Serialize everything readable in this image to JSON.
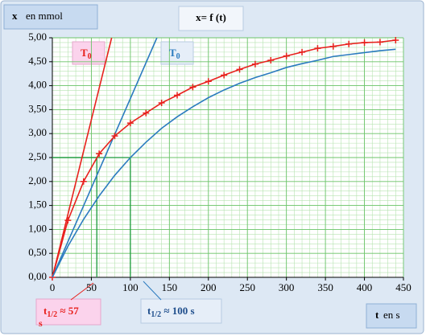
{
  "chart_data": {
    "type": "line",
    "title": "x=  f (t)",
    "y_label": [
      "x",
      "en mmol"
    ],
    "x_label": [
      "t",
      "en s"
    ],
    "x": [
      0,
      20,
      40,
      60,
      80,
      100,
      120,
      140,
      160,
      180,
      200,
      220,
      240,
      260,
      280,
      300,
      320,
      340,
      360,
      380,
      400,
      420,
      440
    ],
    "series": [
      {
        "color": "#e8211d",
        "markers": true,
        "values": [
          0,
          1.19,
          2.0,
          2.58,
          2.95,
          3.22,
          3.43,
          3.64,
          3.8,
          3.97,
          4.09,
          4.22,
          4.34,
          4.45,
          4.53,
          4.62,
          4.7,
          4.78,
          4.82,
          4.87,
          4.9,
          4.91,
          4.95
        ]
      },
      {
        "color": "#2b7bbf",
        "markers": false,
        "values": [
          0,
          0.65,
          1.21,
          1.7,
          2.13,
          2.5,
          2.82,
          3.11,
          3.35,
          3.56,
          3.75,
          3.91,
          4.05,
          4.17,
          4.27,
          4.38,
          4.46,
          4.53,
          4.61,
          4.65,
          4.69,
          4.73,
          4.76
        ]
      }
    ],
    "tangents": [
      {
        "color": "#e8211d",
        "x": [
          0,
          76
        ],
        "values": [
          0,
          5
        ]
      },
      {
        "color": "#2b7bbf",
        "x": [
          0,
          134
        ],
        "values": [
          0,
          5
        ]
      }
    ],
    "half_level": 2.5,
    "half_times": [
      57,
      100
    ],
    "annotations": [
      {
        "parts": [
          "T",
          "0"
        ],
        "color": "#e8211d"
      },
      {
        "parts": [
          "T",
          "0"
        ],
        "color": "#2b7bbf"
      },
      {
        "parts": [
          "t",
          "1/2",
          " ≈ 57",
          "s"
        ],
        "color": "#e8211d"
      },
      {
        "parts": [
          "t",
          "1/2",
          " ≈ 100 s"
        ],
        "color": "#1f4e8c"
      }
    ],
    "xlim": [
      0,
      450
    ],
    "ylim": [
      0,
      5
    ],
    "xticks": [
      0,
      50,
      100,
      150,
      200,
      250,
      300,
      350,
      400,
      450
    ],
    "yticks": [
      {
        "value": 0,
        "label": "0,00"
      },
      {
        "value": 0.5,
        "label": "0,50"
      },
      {
        "value": 1,
        "label": "1,00"
      },
      {
        "value": 1.5,
        "label": "1,50"
      },
      {
        "value": 2,
        "label": "2,00"
      },
      {
        "value": 2.5,
        "label": "2,50"
      },
      {
        "value": 3,
        "label": "3,00"
      },
      {
        "value": 3.5,
        "label": "3,50"
      },
      {
        "value": 4,
        "label": "4,00"
      },
      {
        "value": 4.5,
        "label": "4,50"
      },
      {
        "value": 5,
        "label": "5,00"
      }
    ],
    "grid": true
  }
}
